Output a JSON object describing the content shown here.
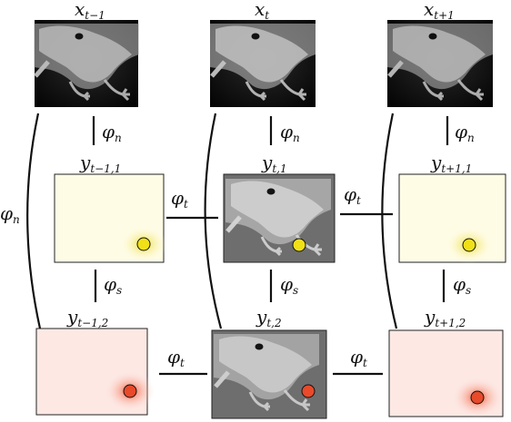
{
  "nodes": {
    "x_prev": {
      "base": "x",
      "sub": "t−1"
    },
    "x_cur": {
      "base": "x",
      "sub": "t"
    },
    "x_next": {
      "base": "x",
      "sub": "t+1"
    },
    "y1_prev": {
      "base": "y",
      "sub": "t−1,1"
    },
    "y1_cur": {
      "base": "y",
      "sub": "t,1"
    },
    "y1_next": {
      "base": "y",
      "sub": "t+1,1"
    },
    "y2_prev": {
      "base": "y",
      "sub": "t−1,2"
    },
    "y2_cur": {
      "base": "y",
      "sub": "t,2"
    },
    "y2_next": {
      "base": "y",
      "sub": "t+1,2"
    }
  },
  "potentials": {
    "phi_n": {
      "base": "φ",
      "sub": "n"
    },
    "phi_s": {
      "base": "φ",
      "sub": "s"
    },
    "phi_t": {
      "base": "φ",
      "sub": "t"
    }
  },
  "colors": {
    "belief_1_marker": "#f0e018",
    "belief_1_glow": "#e8d820",
    "belief_1_bg": "#fffce6",
    "belief_2_marker": "#e84a2a",
    "belief_2_glow": "#f03c18",
    "belief_2_bg": "#fde8e4",
    "observed_frame_bg": "#0c0c0c",
    "overlay_frame_bg": "#6e6e6e"
  }
}
